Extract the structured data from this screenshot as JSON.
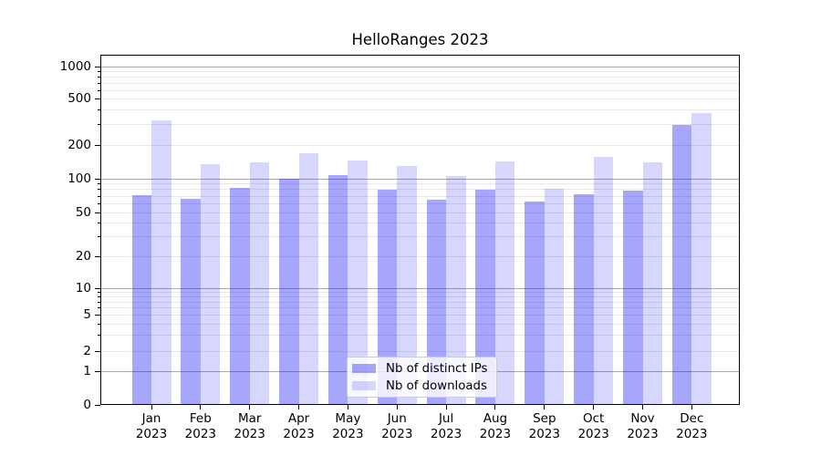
{
  "chart_data": {
    "type": "bar",
    "title": "HelloRanges 2023",
    "categories": [
      "Jan 2023",
      "Feb 2023",
      "Mar 2023",
      "Apr 2023",
      "May 2023",
      "Jun 2023",
      "Jul 2023",
      "Aug 2023",
      "Sep 2023",
      "Oct 2023",
      "Nov 2023",
      "Dec 2023"
    ],
    "series": [
      {
        "name": "Nb of distinct IPs",
        "color": "#0000f759",
        "values": [
          72,
          66,
          83,
          100,
          107,
          80,
          65,
          80,
          63,
          73,
          78,
          300
        ]
      },
      {
        "name": "Nb of downloads",
        "color": "#0000f728",
        "values": [
          330,
          134,
          139,
          169,
          146,
          131,
          105,
          144,
          82,
          157,
          141,
          375
        ]
      }
    ],
    "xlabel": "",
    "ylabel": "",
    "yaxis": {
      "scale": "symlog",
      "tick_values": [
        0,
        1,
        2,
        5,
        10,
        20,
        50,
        100,
        200,
        500,
        1000
      ],
      "tick_labels": [
        "0",
        "1",
        "2",
        "5",
        "10",
        "20",
        "50",
        "100",
        "200",
        "500",
        "1000"
      ],
      "range": [
        0,
        1280
      ]
    },
    "grid": "horizontal, major and minor",
    "legend": {
      "position": "lower center",
      "entries": [
        "Nb of distinct IPs",
        "Nb of downloads"
      ]
    },
    "colors": {
      "background": "#ffffff",
      "spine": "#000000",
      "text": "#000000",
      "major_grid": "#ababab",
      "minor_grid": "#e7e7e7",
      "legend_border": "#cccccc",
      "legend_bg": "#ffffffcc"
    }
  }
}
